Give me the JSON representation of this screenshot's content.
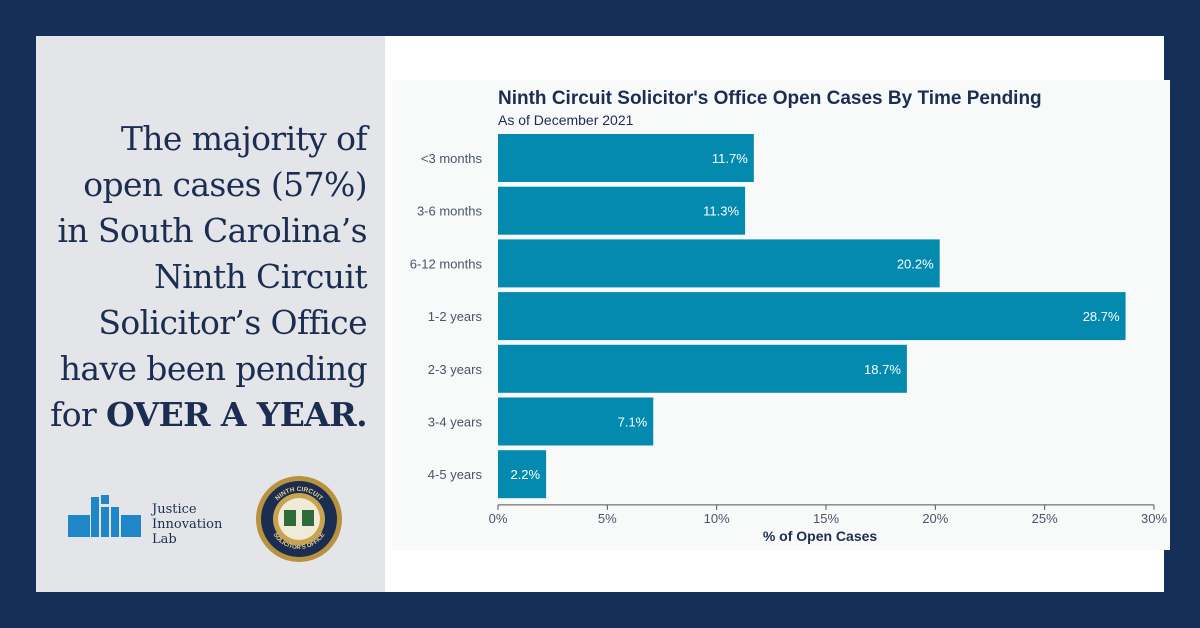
{
  "headline": {
    "line1": "The majority of",
    "line2": "open cases (57%)",
    "line3": "in South Carolina’s",
    "line4": "Ninth Circuit",
    "line5": "Solicitor’s Office",
    "line6": "have been pending",
    "line7_prefix": "for ",
    "line7_emphasis": "OVER A YEAR."
  },
  "logo": {
    "line1": "Justice",
    "line2": "Innovation",
    "line3": "Lab"
  },
  "seal": {
    "top_text": "NINTH CIRCUIT",
    "bottom_text": "SOLICITOR'S OFFICE"
  },
  "colors": {
    "background": "#143059",
    "panel": "#e3e5e8",
    "bar": "#058aaf",
    "title": "#1b2e52"
  },
  "chart_data": {
    "type": "bar",
    "orientation": "horizontal",
    "title": "Ninth Circuit Solicitor's Office Open Cases By Time Pending",
    "subtitle": "As of December 2021",
    "xlabel": "% of Open Cases",
    "ylabel": "",
    "categories": [
      "<3 months",
      "3-6 months",
      "6-12 months",
      "1-2 years",
      "2-3 years",
      "3-4 years",
      "4-5 years"
    ],
    "values": [
      11.7,
      11.3,
      20.2,
      28.7,
      18.7,
      7.1,
      2.2
    ],
    "value_labels": [
      "11.7%",
      "11.3%",
      "20.2%",
      "28.7%",
      "18.7%",
      "7.1%",
      "2.2%"
    ],
    "xlim": [
      0,
      30
    ],
    "xticks": [
      0,
      5,
      10,
      15,
      20,
      25,
      30
    ],
    "xtick_labels": [
      "0%",
      "5%",
      "10%",
      "15%",
      "20%",
      "25%",
      "30%"
    ],
    "grid": false,
    "legend": "none"
  }
}
